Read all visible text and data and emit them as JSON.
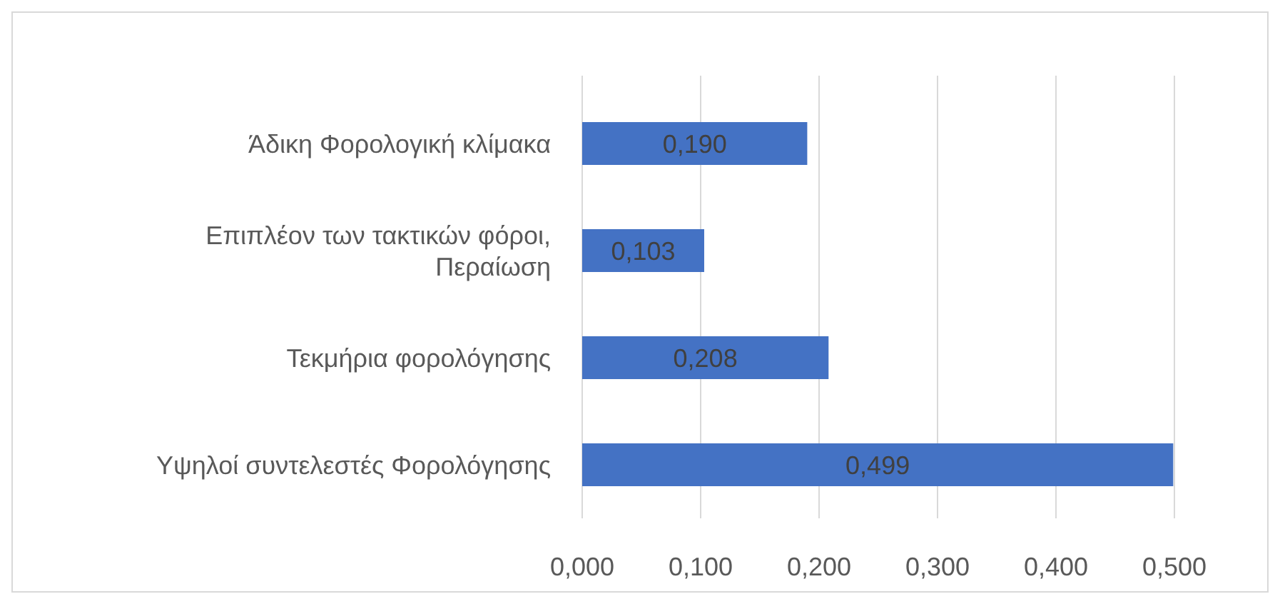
{
  "chart_data": {
    "type": "bar",
    "orientation": "horizontal",
    "categories": [
      "Άδικη Φορολογική κλίμακα",
      "Επιπλέον των τακτικών φόροι, Περαίωση",
      "Τεκμήρια φορολόγησης",
      "Υψηλοί συντελεστές Φορολόγησης"
    ],
    "values": [
      0.19,
      0.103,
      0.208,
      0.499
    ],
    "value_labels": [
      "0,190",
      "0,103",
      "0,208",
      "0,499"
    ],
    "color": "#4472c4",
    "xlim": [
      0,
      0.5
    ],
    "xticks": [
      {
        "value": 0,
        "label": "0,000"
      },
      {
        "value": 0.1,
        "label": "0,100"
      },
      {
        "value": 0.2,
        "label": "0,200"
      },
      {
        "value": 0.3,
        "label": "0,300"
      },
      {
        "value": 0.4,
        "label": "0,400"
      },
      {
        "value": 0.5,
        "label": "0,500"
      }
    ],
    "grid": "x"
  }
}
